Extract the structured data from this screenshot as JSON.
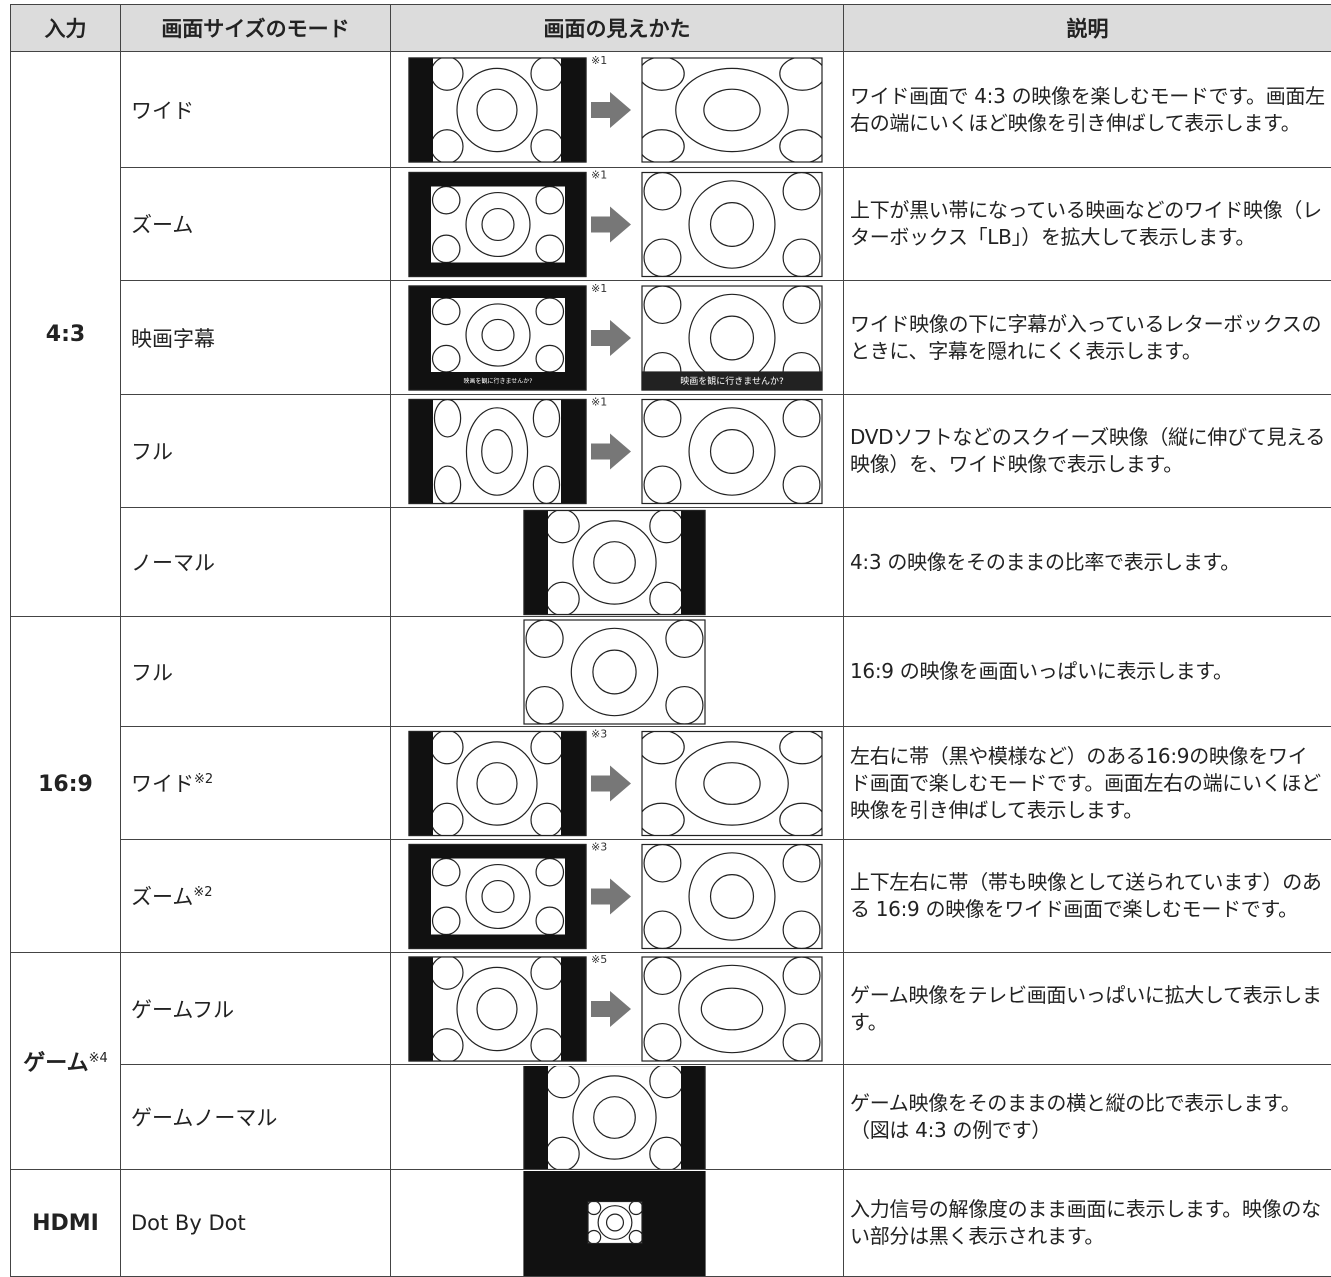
{
  "header": [
    "入力",
    "画面サイズのモード",
    "画面の見えかた",
    "説明"
  ],
  "groups": [
    {
      "input": "4:3",
      "rows": [
        {
          "mode": "ワイド",
          "note": "※1",
          "description": "ワイド画面で 4:3 の映像を楽しむモードです。画面左右の端にいくほど映像を引き伸ばして表示します。"
        },
        {
          "mode": "ズーム",
          "note": "※1",
          "description": "上下が黒い帯になっている映画などのワイド映像（レターボックス「LB」）を拡大して表示します。"
        },
        {
          "mode": "映画字幕",
          "note": "※1",
          "caption": "映画を観に行きませんか?",
          "description": "ワイド映像の下に字幕が入っているレターボックスのときに、字幕を隠れにくく表示します。"
        },
        {
          "mode": "フル",
          "note": "※1",
          "description": "DVDソフトなどのスクイーズ映像（縦に伸びて見える映像）を、ワイド映像で表示します。"
        },
        {
          "mode": "ノーマル",
          "description": "4:3 の映像をそのままの比率で表示します。"
        }
      ]
    },
    {
      "input": "16:9",
      "rows": [
        {
          "mode": "フル",
          "description": "16:9 の映像を画面いっぱいに表示します。"
        },
        {
          "mode": "ワイド",
          "mode_sup": "※2",
          "note": "※3",
          "description": "左右に帯（黒や模様など）のある16:9の映像をワイド画面で楽しむモードです。画面左右の端にいくほど映像を引き伸ばして表示します。"
        },
        {
          "mode": "ズーム",
          "mode_sup": "※2",
          "note": "※3",
          "description": "上下左右に帯（帯も映像として送られています）のある 16:9 の映像をワイド画面で楽しむモードです。"
        }
      ]
    },
    {
      "input": "ゲーム",
      "input_sup": "※4",
      "rows": [
        {
          "mode": "ゲームフル",
          "note": "※5",
          "description": "ゲーム映像をテレビ画面いっぱいに拡大して表示します。"
        },
        {
          "mode": "ゲームノーマル",
          "description": "ゲーム映像をそのままの横と縦の比で表示します。（図は 4:3 の例です）"
        }
      ]
    },
    {
      "input": "HDMI",
      "rows": [
        {
          "mode": "Dot By Dot",
          "description": "入力信号の解像度のまま画面に表示します。映像のない部分は黒く表示されます。"
        }
      ]
    }
  ]
}
